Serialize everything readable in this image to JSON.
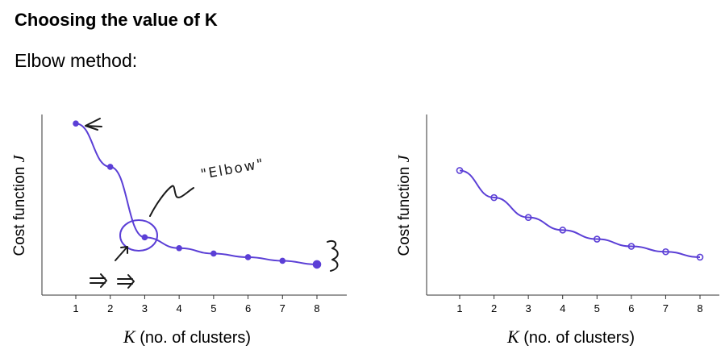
{
  "slide": {
    "title": "Choosing the value of K",
    "subtitle": "Elbow method:"
  },
  "annotations": {
    "elbow_label": "\"Elbow\""
  },
  "colors": {
    "series": "#5b3fd6",
    "axis": "#333333"
  },
  "chart_data": [
    {
      "type": "line",
      "x": [
        1,
        2,
        3,
        4,
        5,
        6,
        7,
        8
      ],
      "series": [
        {
          "values": [
            95,
            71,
            32,
            26,
            23,
            21,
            19,
            17
          ]
        }
      ],
      "xlabel_var": "K",
      "xlabel_text": "(no. of clusters)",
      "ylabel_text": "Cost function",
      "ylabel_var": "J",
      "xlim": [
        0,
        9
      ],
      "ylim": [
        0,
        100
      ],
      "x_ticks": [
        "1",
        "2",
        "3",
        "4",
        "5",
        "6",
        "7",
        "8"
      ],
      "grid": false
    },
    {
      "type": "line",
      "x": [
        1,
        2,
        3,
        4,
        5,
        6,
        7,
        8
      ],
      "series": [
        {
          "values": [
            69,
            54,
            43,
            36,
            31,
            27,
            24,
            21
          ]
        }
      ],
      "xlabel_var": "K",
      "xlabel_text": "(no. of clusters)",
      "ylabel_text": "Cost function",
      "ylabel_var": "J",
      "xlim": [
        0,
        9
      ],
      "ylim": [
        0,
        100
      ],
      "x_ticks": [
        "1",
        "2",
        "3",
        "4",
        "5",
        "6",
        "7",
        "8"
      ],
      "grid": false
    }
  ]
}
